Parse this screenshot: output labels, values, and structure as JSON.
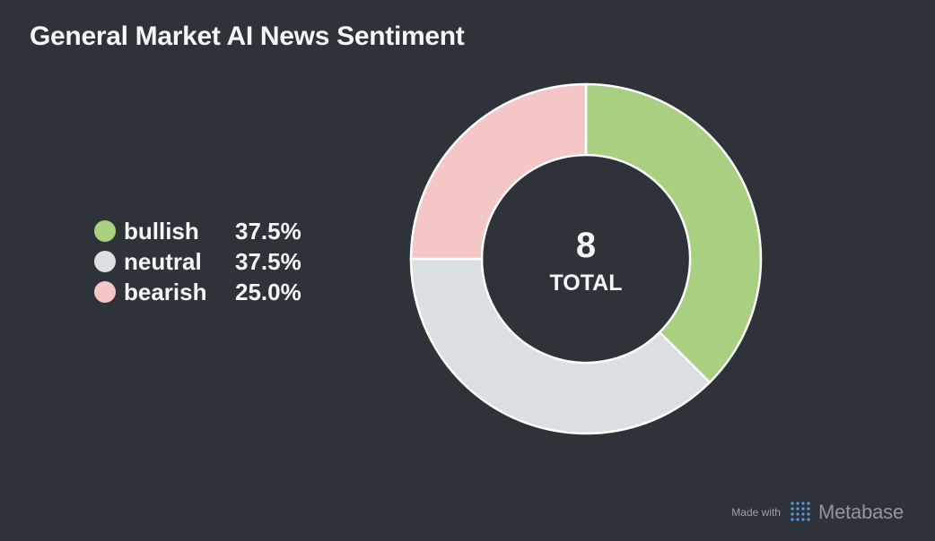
{
  "title": "General Market AI News Sentiment",
  "chart_data": {
    "type": "pie",
    "donut": true,
    "title": "General Market AI News Sentiment",
    "total": 8,
    "total_label": "TOTAL",
    "legend_placement": "left",
    "slices": [
      {
        "label": "bullish",
        "value": 3,
        "percent": "37.5%",
        "color": "#a8d080"
      },
      {
        "label": "neutral",
        "value": 3,
        "percent": "37.5%",
        "color": "#dcdfe1"
      },
      {
        "label": "bearish",
        "value": 2,
        "percent": "25.0%",
        "color": "#f4c6c6"
      }
    ]
  },
  "footer": {
    "made_with": "Made with",
    "brand": "Metabase",
    "logo_icon": "metabase-logo-icon"
  }
}
